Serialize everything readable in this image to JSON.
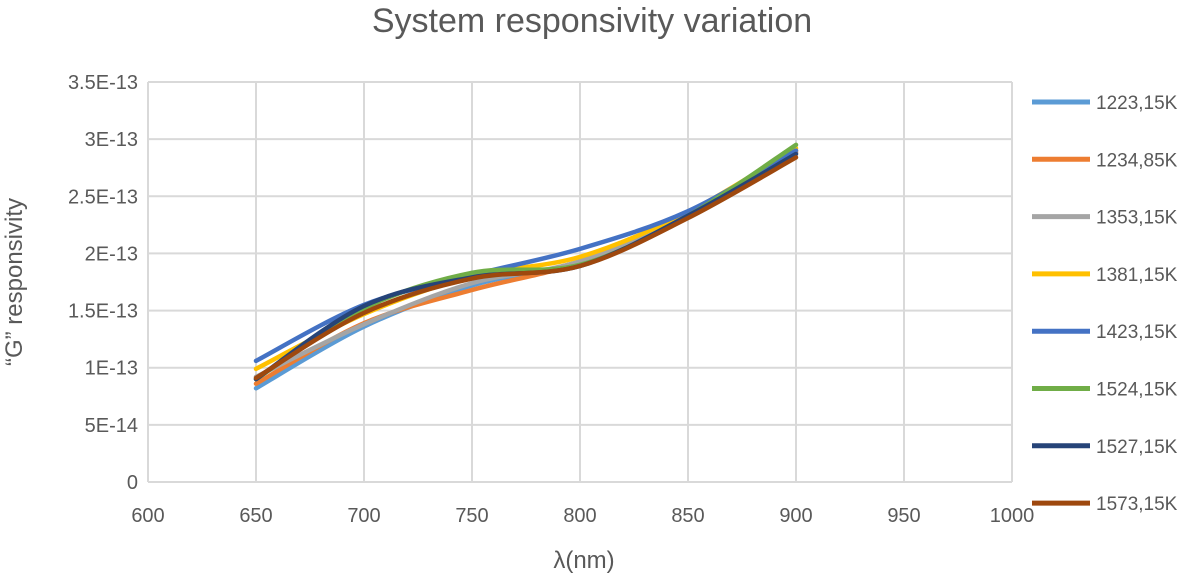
{
  "chart_data": {
    "type": "line",
    "title": "System responsivity variation",
    "xlabel": "λ(nm)",
    "ylabel": "“G” responsivity",
    "xlim": [
      600,
      1000
    ],
    "ylim": [
      0,
      3.5e-13
    ],
    "x_ticks": [
      "600",
      "650",
      "700",
      "750",
      "800",
      "850",
      "900",
      "950",
      "1000"
    ],
    "y_ticks": [
      "0",
      "5E-14",
      "1E-13",
      "1.5E-13",
      "2E-13",
      "2.5E-13",
      "3E-13",
      "3.5E-13"
    ],
    "grid": true,
    "legend_position": "right",
    "x": [
      650,
      700,
      750,
      800,
      850,
      900
    ],
    "series": [
      {
        "name": "1223,15K",
        "color": "#5B9BD5",
        "values": [
          8.2e-14,
          1.36e-13,
          1.72e-13,
          1.93e-13,
          2.34e-13,
          2.88e-13
        ]
      },
      {
        "name": "1234,85K",
        "color": "#ED7D31",
        "values": [
          8.6e-14,
          1.39e-13,
          1.68e-13,
          1.92e-13,
          2.33e-13,
          2.89e-13
        ]
      },
      {
        "name": "1353,15K",
        "color": "#A5A5A5",
        "values": [
          9.2e-14,
          1.38e-13,
          1.74e-13,
          1.93e-13,
          2.35e-13,
          2.9e-13
        ]
      },
      {
        "name": "1381,15K",
        "color": "#FFC000",
        "values": [
          9.9e-14,
          1.47e-13,
          1.8e-13,
          1.97e-13,
          2.36e-13,
          2.92e-13
        ]
      },
      {
        "name": "1423,15K",
        "color": "#4472C4",
        "values": [
          1.06e-13,
          1.55e-13,
          1.81e-13,
          2.04e-13,
          2.37e-13,
          2.9e-13
        ]
      },
      {
        "name": "1524,15K",
        "color": "#70AD47",
        "values": [
          9e-14,
          1.52e-13,
          1.83e-13,
          1.9e-13,
          2.33e-13,
          2.95e-13
        ]
      },
      {
        "name": "1527,15K",
        "color": "#264478",
        "values": [
          9e-14,
          1.54e-13,
          1.79e-13,
          1.89e-13,
          2.33e-13,
          2.87e-13
        ]
      },
      {
        "name": "1573,15K",
        "color": "#9E480E",
        "values": [
          9.1e-14,
          1.48e-13,
          1.78e-13,
          1.89e-13,
          2.31e-13,
          2.84e-13
        ]
      }
    ]
  }
}
